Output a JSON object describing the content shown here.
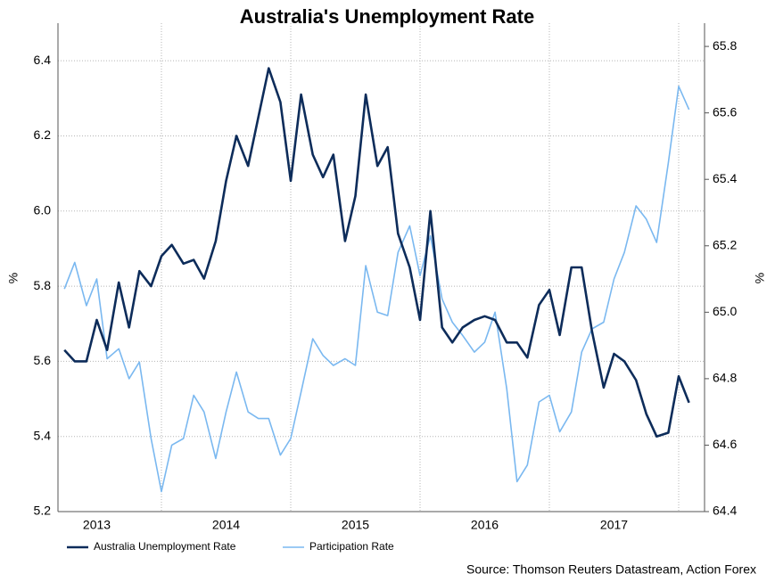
{
  "chart_data": {
    "type": "line",
    "title": "Australia's Unemployment Rate",
    "ylabel": "%",
    "y2label": "%",
    "source": "Source: Thomson Reuters Datastream, Action Forex",
    "x": [
      2013.25,
      2013.33,
      2013.42,
      2013.5,
      2013.58,
      2013.67,
      2013.75,
      2013.83,
      2013.92,
      2014,
      2014.08,
      2014.17,
      2014.25,
      2014.33,
      2014.42,
      2014.5,
      2014.58,
      2014.67,
      2014.75,
      2014.83,
      2014.92,
      2015,
      2015.08,
      2015.17,
      2015.25,
      2015.33,
      2015.42,
      2015.5,
      2015.58,
      2015.67,
      2015.75,
      2015.83,
      2015.92,
      2016,
      2016.08,
      2016.17,
      2016.25,
      2016.33,
      2016.42,
      2016.5,
      2016.58,
      2016.67,
      2016.75,
      2016.83,
      2016.92,
      2017,
      2017.08,
      2017.17,
      2017.25,
      2017.33,
      2017.42,
      2017.5,
      2017.58,
      2017.67,
      2017.75,
      2017.83,
      2017.92,
      2018,
      2018.08
    ],
    "series": [
      {
        "name": "Australia Unemployment Rate",
        "color": "#0d2c5a",
        "axis": "y",
        "values": [
          5.63,
          5.6,
          5.6,
          5.71,
          5.63,
          5.81,
          5.69,
          5.84,
          5.8,
          5.88,
          5.91,
          5.86,
          5.87,
          5.82,
          5.92,
          6.08,
          6.2,
          6.12,
          6.25,
          6.38,
          6.29,
          6.08,
          6.31,
          6.15,
          6.09,
          6.15,
          5.92,
          6.04,
          6.31,
          6.12,
          6.17,
          5.94,
          5.85,
          5.71,
          6.0,
          5.69,
          5.65,
          5.69,
          5.71,
          5.72,
          5.71,
          5.65,
          5.65,
          5.61,
          5.75,
          5.79,
          5.67,
          5.85,
          5.85,
          5.68,
          5.53,
          5.62,
          5.6,
          5.55,
          5.46,
          5.4,
          5.41,
          5.56,
          5.49
        ]
      },
      {
        "name": "Participation Rate",
        "color": "#7ab8f0",
        "axis": "y2",
        "values": [
          65.07,
          65.15,
          65.02,
          65.1,
          64.86,
          64.89,
          64.8,
          64.85,
          64.62,
          64.46,
          64.6,
          64.62,
          64.75,
          64.7,
          64.56,
          64.7,
          64.82,
          64.7,
          64.68,
          64.68,
          64.57,
          64.62,
          64.76,
          64.92,
          64.87,
          64.84,
          64.86,
          64.84,
          65.14,
          65.0,
          64.99,
          65.18,
          65.26,
          65.11,
          65.23,
          65.04,
          64.97,
          64.93,
          64.88,
          64.91,
          65.0,
          64.77,
          64.49,
          64.54,
          64.73,
          64.75,
          64.64,
          64.7,
          64.88,
          64.95,
          64.97,
          65.1,
          65.18,
          65.32,
          65.28,
          65.21,
          65.45,
          65.68,
          65.61
        ]
      }
    ],
    "xlim": [
      2013.2,
      2018.2
    ],
    "xticks": [
      {
        "value": 2013.5,
        "label": "2013"
      },
      {
        "value": 2014.5,
        "label": "2014"
      },
      {
        "value": 2015.5,
        "label": "2015"
      },
      {
        "value": 2016.5,
        "label": "2016"
      },
      {
        "value": 2017.5,
        "label": "2017"
      }
    ],
    "xgrid": [
      2014,
      2015,
      2016,
      2017,
      2018
    ],
    "ylim": [
      5.2,
      6.5
    ],
    "yticks": [
      5.2,
      5.4,
      {
        "value": 5.6,
        "label": "5.6"
      },
      5.8,
      {
        "value": 6.0,
        "label": "6.0"
      },
      6.2,
      6.4
    ],
    "y2lim": [
      64.4,
      65.87
    ],
    "y2ticks": [
      64.4,
      64.6,
      64.8,
      {
        "value": 65.0,
        "label": "65.0"
      },
      65.2,
      65.4,
      65.6,
      65.8
    ],
    "grid": true
  }
}
